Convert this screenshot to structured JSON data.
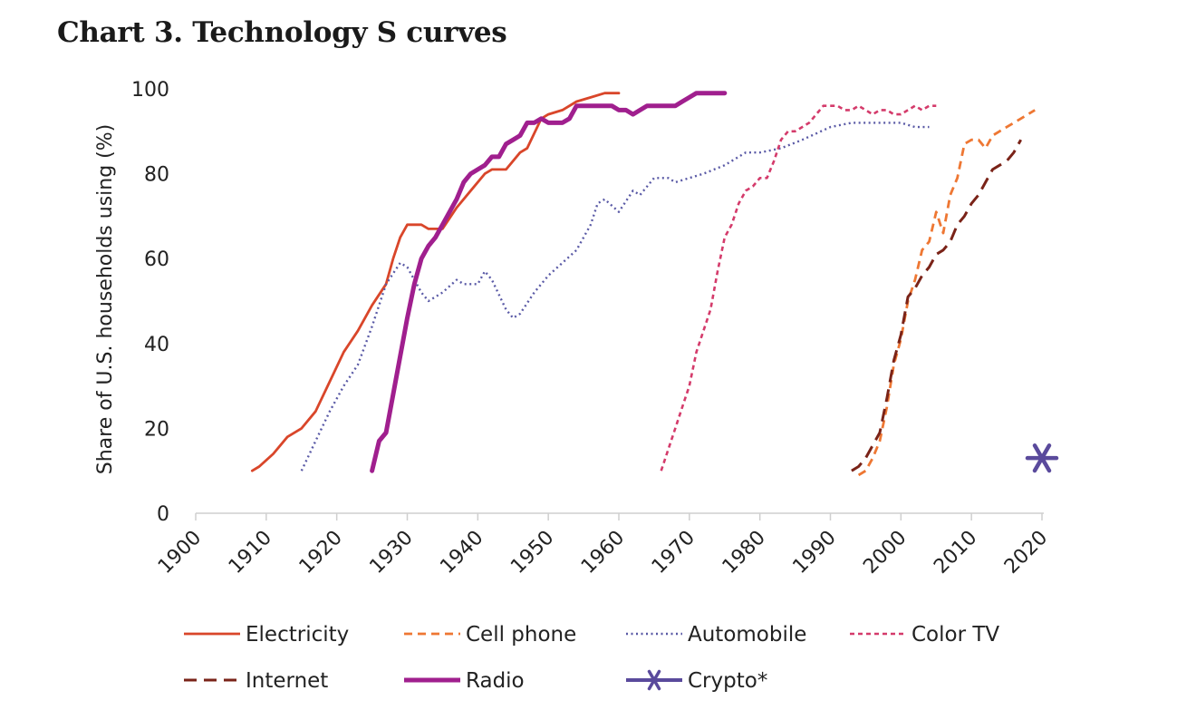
{
  "title": "Chart 3. Technology S curves",
  "chart_data": {
    "type": "line",
    "title": "Chart 3. Technology S curves",
    "xlabel": "",
    "ylabel": "Share of U.S. households using (%)",
    "xlim": [
      1900,
      2020
    ],
    "ylim": [
      0,
      100
    ],
    "xticks": [
      "1900",
      "1910",
      "1920",
      "1930",
      "1940",
      "1950",
      "1960",
      "1970",
      "1980",
      "1990",
      "2000",
      "2010",
      "2020"
    ],
    "yticks": [
      "0",
      "20",
      "40",
      "60",
      "80",
      "100"
    ],
    "series": [
      {
        "name": "Electricity",
        "color": "#D9462A",
        "style": "solid",
        "x": [
          1908,
          1909,
          1911,
          1913,
          1915,
          1917,
          1919,
          1921,
          1923,
          1925,
          1927,
          1928,
          1929,
          1930,
          1932,
          1933,
          1935,
          1937,
          1939,
          1941,
          1942,
          1944,
          1946,
          1947,
          1949,
          1950,
          1952,
          1954,
          1956,
          1958,
          1960
        ],
        "y": [
          10,
          11,
          14,
          18,
          20,
          24,
          31,
          38,
          43,
          49,
          54,
          60,
          65,
          68,
          68,
          67,
          67,
          72,
          76,
          80,
          81,
          81,
          85,
          86,
          93,
          94,
          95,
          97,
          98,
          99,
          99
        ]
      },
      {
        "name": "Cell phone",
        "color": "#EE7733",
        "style": "dash",
        "x": [
          1994,
          1995,
          1996,
          1997,
          1998,
          1999,
          2000,
          2001,
          2002,
          2003,
          2004,
          2005,
          2006,
          2007,
          2008,
          2009,
          2010,
          2011,
          2012,
          2013,
          2015,
          2017,
          2019
        ],
        "y": [
          9,
          10,
          13,
          17,
          25,
          35,
          41,
          50,
          55,
          62,
          64,
          71,
          66,
          75,
          79,
          87,
          88,
          88,
          86,
          89,
          91,
          93,
          95
        ]
      },
      {
        "name": "Automobile",
        "color": "#5A5AA6",
        "style": "dot",
        "x": [
          1915,
          1917,
          1919,
          1921,
          1923,
          1925,
          1927,
          1929,
          1930,
          1931,
          1932,
          1933,
          1935,
          1937,
          1938,
          1940,
          1941,
          1942,
          1944,
          1945,
          1946,
          1948,
          1950,
          1952,
          1954,
          1956,
          1957,
          1958,
          1960,
          1962,
          1963,
          1965,
          1967,
          1968,
          1970,
          1972,
          1975,
          1978,
          1980,
          1983,
          1986,
          1990,
          1993,
          1995,
          1998,
          2000,
          2002,
          2004
        ],
        "y": [
          10,
          17,
          24,
          30,
          35,
          44,
          54,
          59,
          58,
          55,
          52,
          50,
          52,
          55,
          54,
          54,
          57,
          55,
          48,
          46,
          47,
          52,
          56,
          59,
          62,
          68,
          73,
          74,
          71,
          76,
          75,
          79,
          79,
          78,
          79,
          80,
          82,
          85,
          85,
          86,
          88,
          91,
          92,
          92,
          92,
          92,
          91,
          91
        ]
      },
      {
        "name": "Color TV",
        "color": "#D43B6B",
        "style": "shortdash",
        "x": [
          1966,
          1967,
          1968,
          1969,
          1970,
          1971,
          1972,
          1973,
          1974,
          1975,
          1976,
          1977,
          1978,
          1979,
          1980,
          1981,
          1982,
          1983,
          1984,
          1985,
          1986,
          1987,
          1988,
          1989,
          1990,
          1991,
          1992,
          1993,
          1994,
          1995,
          1996,
          1997,
          1998,
          1999,
          2000,
          2001,
          2002,
          2003,
          2004,
          2005
        ],
        "y": [
          10,
          15,
          20,
          25,
          30,
          38,
          43,
          48,
          57,
          65,
          68,
          73,
          76,
          77,
          79,
          79,
          83,
          88,
          90,
          90,
          91,
          92,
          94,
          96,
          96,
          96,
          95,
          95,
          96,
          95,
          94,
          95,
          95,
          94,
          94,
          95,
          96,
          95,
          96,
          96
        ]
      },
      {
        "name": "Internet",
        "color": "#7A2318",
        "style": "longdash",
        "x": [
          1993,
          1994,
          1995,
          1996,
          1997,
          1998,
          1999,
          2000,
          2001,
          2002,
          2003,
          2004,
          2005,
          2006,
          2007,
          2008,
          2009,
          2010,
          2011,
          2012,
          2013,
          2014,
          2015,
          2016,
          2017
        ],
        "y": [
          10,
          11,
          13,
          16,
          19,
          27,
          36,
          42,
          51,
          53,
          56,
          58,
          61,
          62,
          64,
          68,
          70,
          73,
          75,
          78,
          81,
          82,
          83,
          85,
          88
        ]
      },
      {
        "name": "Radio",
        "color": "#A01F8E",
        "style": "thick",
        "x": [
          1925,
          1926,
          1927,
          1928,
          1929,
          1930,
          1931,
          1932,
          1933,
          1934,
          1935,
          1936,
          1937,
          1938,
          1939,
          1940,
          1941,
          1942,
          1943,
          1944,
          1945,
          1946,
          1947,
          1948,
          1949,
          1950,
          1951,
          1952,
          1953,
          1954,
          1955,
          1956,
          1957,
          1958,
          1959,
          1960,
          1961,
          1962,
          1963,
          1964,
          1965,
          1966,
          1967,
          1968,
          1969,
          1970,
          1971,
          1972,
          1973,
          1974,
          1975
        ],
        "y": [
          10,
          17,
          19,
          28,
          37,
          46,
          54,
          60,
          63,
          65,
          68,
          71,
          74,
          78,
          80,
          81,
          82,
          84,
          84,
          87,
          88,
          89,
          92,
          92,
          93,
          92,
          92,
          92,
          93,
          96,
          96,
          96,
          96,
          96,
          96,
          95,
          95,
          94,
          95,
          96,
          96,
          96,
          96,
          96,
          97,
          98,
          99,
          99,
          99,
          99,
          99
        ]
      },
      {
        "name": "Crypto*",
        "color": "#5A4A9C",
        "style": "marker",
        "x": [
          2020
        ],
        "y": [
          13
        ]
      }
    ],
    "legend": "bottom",
    "grid": false
  }
}
